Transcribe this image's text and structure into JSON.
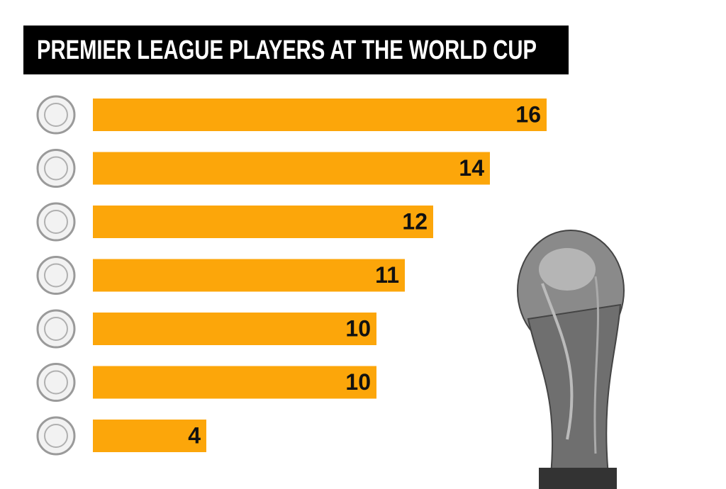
{
  "chart_data": {
    "type": "bar",
    "orientation": "horizontal",
    "title": "PREMIER LEAGUE PLAYERS AT THE WORLD CUP",
    "categories": [
      null,
      null,
      null,
      null,
      null,
      null,
      null
    ],
    "values": [
      16,
      14,
      12,
      11,
      10,
      10,
      4
    ],
    "color": "#fca60a",
    "data_labels": true
  }
}
